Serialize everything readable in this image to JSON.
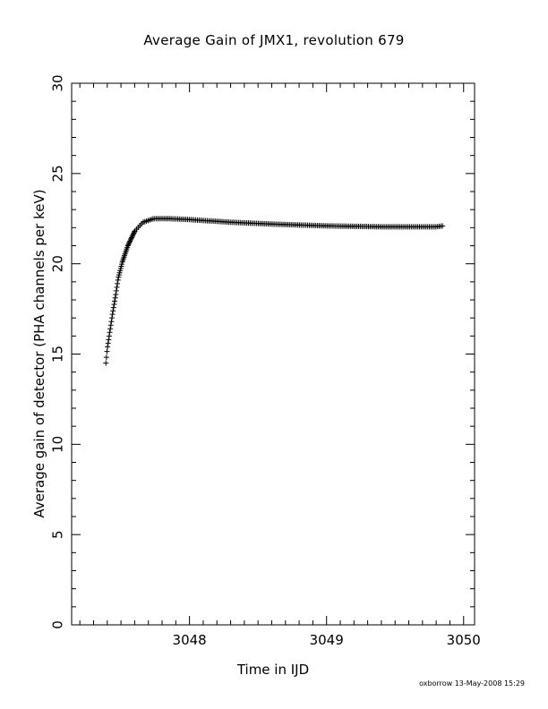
{
  "chart_data": {
    "type": "scatter",
    "title": "Average Gain of JMX1, revolution 679",
    "xlabel": "Time in IJD",
    "ylabel": "Average gain of detector (PHA channels per keV)",
    "xlim": [
      3047.14,
      3050.08
    ],
    "ylim": [
      0,
      30
    ],
    "xticks_major": [
      3048,
      3049,
      3050
    ],
    "yticks_major": [
      0,
      5,
      10,
      15,
      20,
      25,
      30
    ],
    "marker": "plus",
    "curve_points": [
      [
        3047.39,
        14.5
      ],
      [
        3047.4,
        15.3
      ],
      [
        3047.42,
        16.3
      ],
      [
        3047.44,
        17.3
      ],
      [
        3047.46,
        18.2
      ],
      [
        3047.48,
        19.2
      ],
      [
        3047.51,
        20.1
      ],
      [
        3047.55,
        21.0
      ],
      [
        3047.6,
        21.8
      ],
      [
        3047.66,
        22.3
      ],
      [
        3047.74,
        22.5
      ],
      [
        3047.85,
        22.5
      ],
      [
        3048.0,
        22.45
      ],
      [
        3048.3,
        22.3
      ],
      [
        3048.6,
        22.2
      ],
      [
        3049.0,
        22.1
      ],
      [
        3049.4,
        22.05
      ],
      [
        3049.8,
        22.05
      ],
      [
        3049.85,
        22.1
      ]
    ]
  },
  "footer_stamp": "oxborrow 13-May-2008 15:29"
}
